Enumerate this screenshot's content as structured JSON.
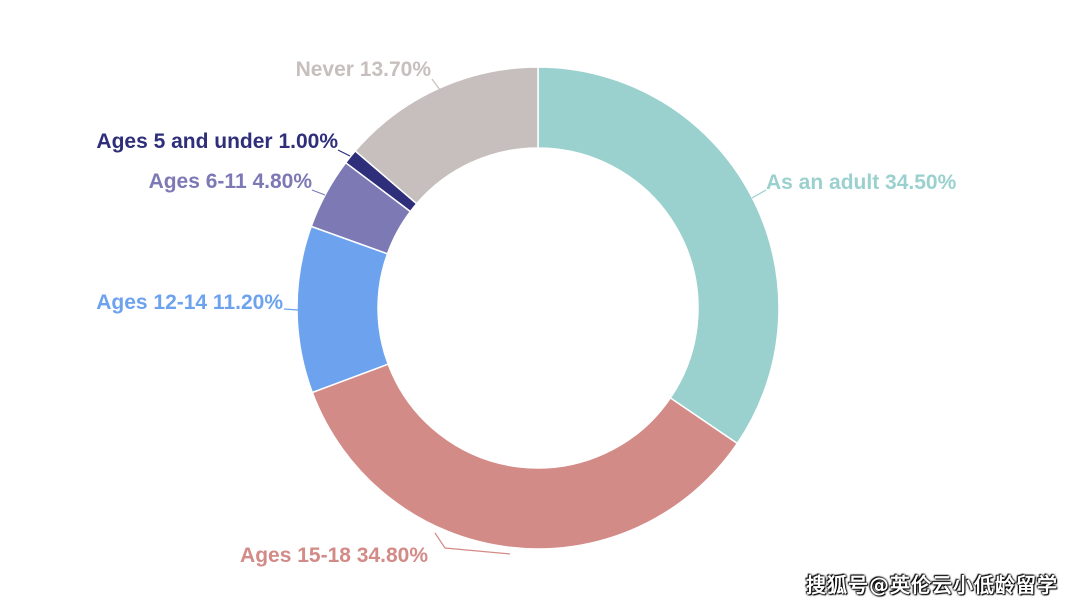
{
  "chart_data": {
    "type": "pie",
    "donut": true,
    "start_angle_deg": 0,
    "direction": "clockwise",
    "slices": [
      {
        "label": "As an adult",
        "value": 34.5,
        "value_text": "34.50%",
        "color": "#9AD1CE"
      },
      {
        "label": "Ages 15-18",
        "value": 34.8,
        "value_text": "34.80%",
        "color": "#D38B87"
      },
      {
        "label": "Ages 12-14",
        "value": 11.2,
        "value_text": "11.20%",
        "color": "#6CA2EE"
      },
      {
        "label": "Ages 6-11",
        "value": 4.8,
        "value_text": "4.80%",
        "color": "#7C79B5"
      },
      {
        "label": "Ages 5 and under",
        "value": 1.0,
        "value_text": "1.00%",
        "color": "#2F2E7A"
      },
      {
        "label": "Never",
        "value": 13.7,
        "value_text": "13.70%",
        "color": "#C6BFBD"
      }
    ]
  },
  "watermark": "搜狐号@英伦云小低龄留学"
}
